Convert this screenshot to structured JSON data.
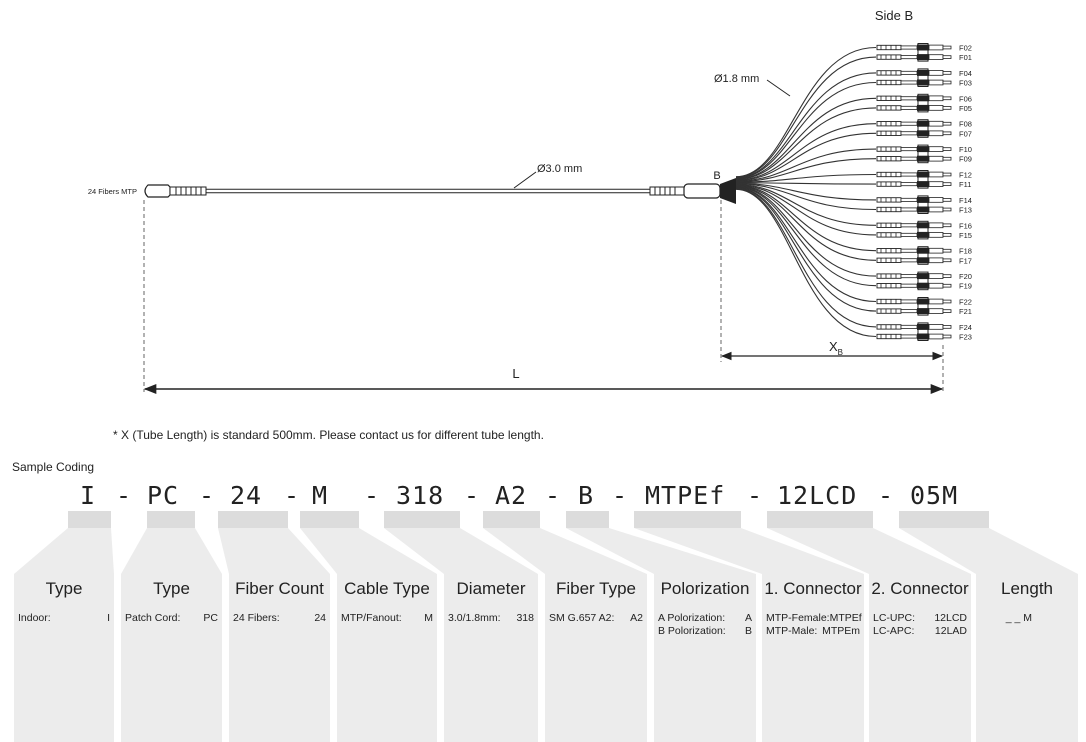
{
  "diagram": {
    "side_b_label": "Side B",
    "left_connector_label": "24 Fibers MTP",
    "trunk_diameter_label": "Ø3.0 mm",
    "fanout_diameter_label": "Ø1.8 mm",
    "breakout_label": "B",
    "length_label": "L",
    "tube_length_label": "X",
    "tube_length_sub": "B",
    "fiber_labels": [
      "F02",
      "F01",
      "F04",
      "F03",
      "F06",
      "F05",
      "F08",
      "F07",
      "F10",
      "F09",
      "F12",
      "F11",
      "F14",
      "F13",
      "F16",
      "F15",
      "F18",
      "F17",
      "F20",
      "F19",
      "F22",
      "F21",
      "F24",
      "F23"
    ]
  },
  "note": "* X (Tube Length) is standard 500mm. Please contact us for different tube length.",
  "sample_coding": {
    "title": "Sample Coding",
    "code_parts": [
      "I",
      "-",
      "PC",
      "-",
      "24",
      "-",
      "M",
      "-",
      "318",
      "-",
      "A2",
      "-",
      "B",
      "-",
      "MTPEf",
      "-",
      "12LCD",
      "-",
      "05M"
    ]
  },
  "columns": [
    {
      "header": "Type",
      "rows": [
        {
          "label": "Indoor:",
          "value": "I"
        }
      ]
    },
    {
      "header": "Type",
      "rows": [
        {
          "label": "Patch Cord:",
          "value": "PC"
        }
      ]
    },
    {
      "header": "Fiber Count",
      "rows": [
        {
          "label": "24 Fibers:",
          "value": "24"
        }
      ]
    },
    {
      "header": "Cable Type",
      "rows": [
        {
          "label": "MTP/Fanout:",
          "value": "M"
        }
      ]
    },
    {
      "header": "Diameter",
      "rows": [
        {
          "label": "3.0/1.8mm:",
          "value": "318"
        }
      ]
    },
    {
      "header": "Fiber Type",
      "rows": [
        {
          "label": "SM G.657 A2:",
          "value": "A2"
        }
      ]
    },
    {
      "header": "Polorization",
      "rows": [
        {
          "label": "A Polorization:",
          "value": "A"
        },
        {
          "label": "B Polorization:",
          "value": "B"
        }
      ]
    },
    {
      "header": "1. Connector",
      "rows": [
        {
          "label": "MTP-Female:",
          "value": "MTPEf"
        },
        {
          "label": "MTP-Male:",
          "value": "MTPEm"
        }
      ]
    },
    {
      "header": "2. Connector",
      "rows": [
        {
          "label": "LC-UPC:",
          "value": "12LCD"
        },
        {
          "label": "LC-APC:",
          "value": "12LAD"
        }
      ]
    },
    {
      "header": "Length",
      "single": "_ _ M"
    }
  ]
}
